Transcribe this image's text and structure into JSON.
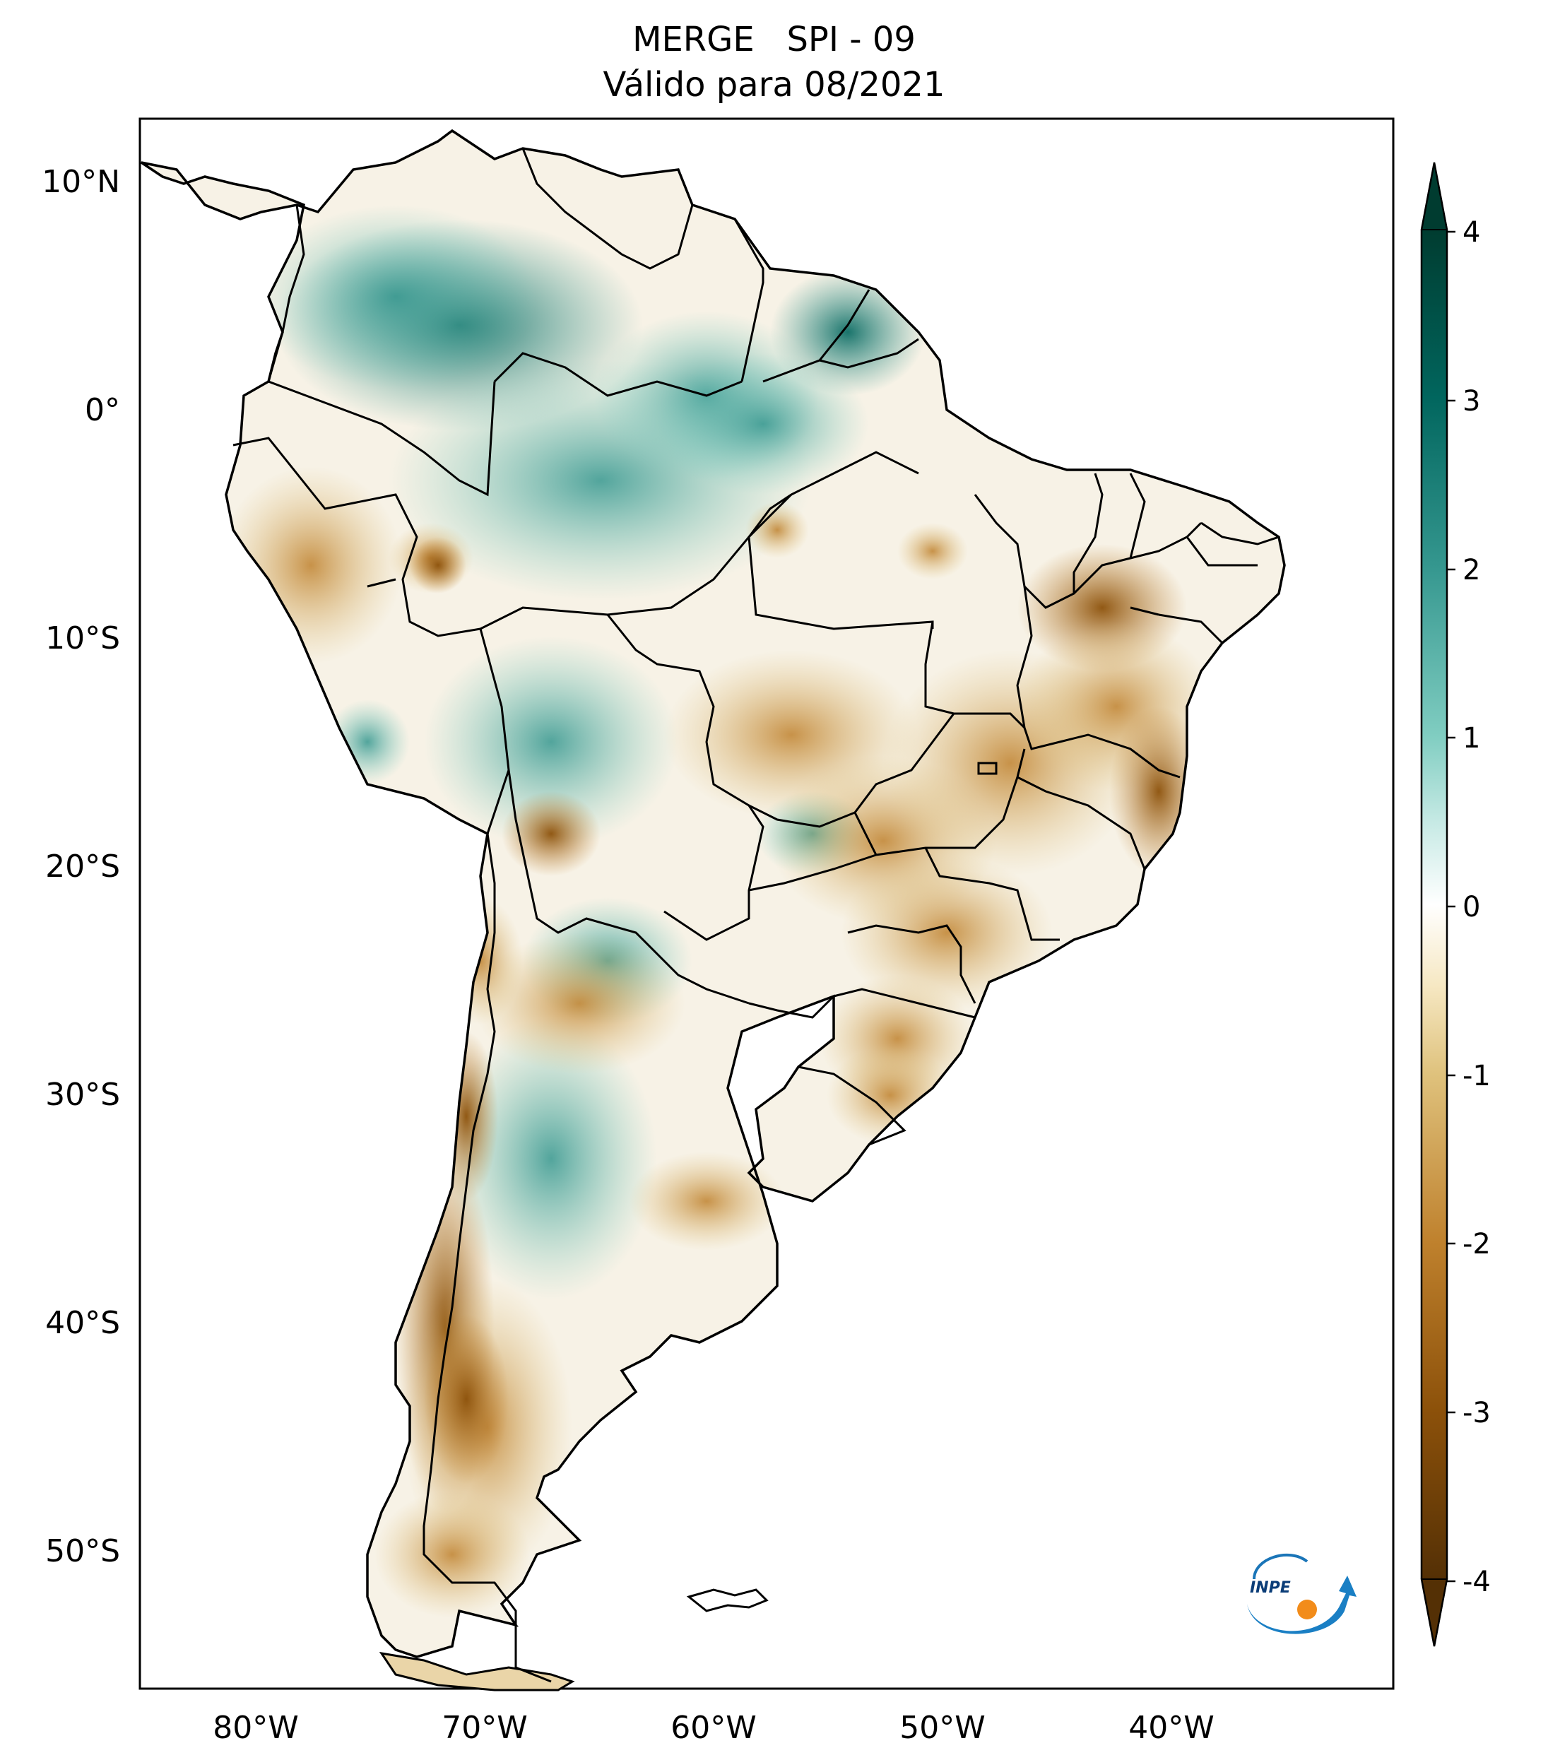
{
  "title": {
    "line1": "MERGE   SPI - 09",
    "line2": "Válido para 08/2021"
  },
  "map": {
    "lat_ticks": [
      "10°N",
      "0°",
      "10°S",
      "20°S",
      "30°S",
      "40°S",
      "50°S"
    ],
    "lon_ticks": [
      "80°W",
      "70°W",
      "60°W",
      "50°W",
      "40°W"
    ]
  },
  "colorbar": {
    "ticks": [
      "4",
      "3",
      "2",
      "1",
      "0",
      "-1",
      "-2",
      "-3",
      "-4"
    ],
    "colors": {
      "wet_max": "#003c30",
      "wet_strong": "#01665e",
      "wet": "#35978f",
      "wet_light": "#80cdc1",
      "wet_pale": "#c7eae5",
      "neutral": "#ffffff",
      "dry_pale": "#f6e8c3",
      "dry_light": "#dfc27d",
      "dry": "#bf812d",
      "dry_strong": "#8c510a",
      "dry_max": "#543005"
    }
  },
  "logo": {
    "text": "INPE"
  }
}
